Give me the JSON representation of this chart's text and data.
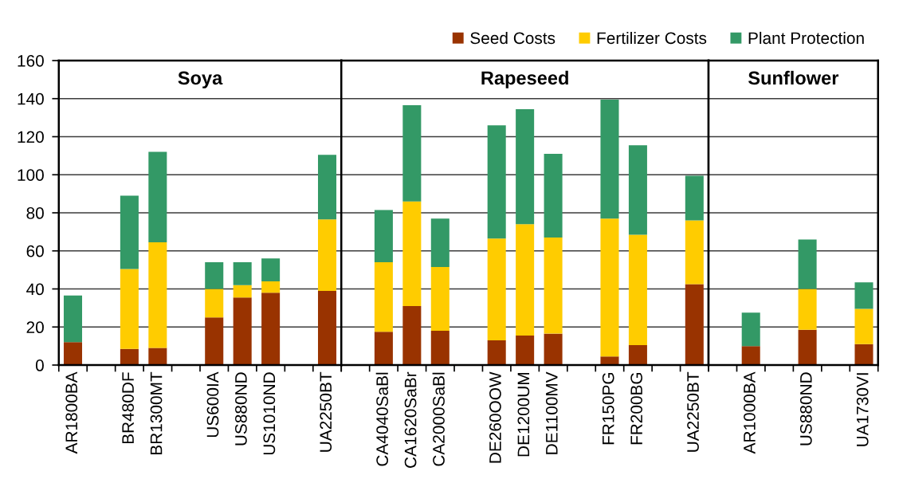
{
  "chart_data": [
    {
      "type": "bar",
      "title": "Soya",
      "stacked": true,
      "categories": [
        "AR1800BA",
        null,
        "BR480DF",
        "BR1300MT",
        null,
        "US600IA",
        "US880ND",
        "US1010ND",
        null,
        "UA2250BT"
      ],
      "series": [
        {
          "name": "Seed Costs",
          "color": "#993300",
          "values": [
            12,
            null,
            8.5,
            9,
            null,
            25,
            35.5,
            38,
            null,
            39
          ]
        },
        {
          "name": "Fertilizer Costs",
          "color": "#ffcc00",
          "values": [
            null,
            null,
            42,
            55.5,
            null,
            15,
            6.5,
            6,
            null,
            37.5
          ]
        },
        {
          "name": "Plant Protection",
          "color": "#339966",
          "values": [
            24.5,
            null,
            38.5,
            47.5,
            null,
            14,
            12,
            12,
            null,
            34
          ]
        }
      ],
      "ylim": [
        0,
        160
      ],
      "yticks": [
        0,
        20,
        40,
        60,
        80,
        100,
        120,
        140,
        160
      ],
      "grid": "y",
      "legend": "top right"
    },
    {
      "type": "bar",
      "title": "Rapeseed",
      "stacked": true,
      "categories": [
        null,
        "CA4040SaBl",
        "CA1620SaBr",
        "CA2000SaBl",
        null,
        "DE260OOW",
        "DE1200UM",
        "DE1100MV",
        null,
        "FR150PG",
        "FR200BG",
        null,
        "UA2250BT"
      ],
      "series": [
        {
          "color": "#993300",
          "values": [
            null,
            17.5,
            31,
            18,
            null,
            13,
            15.5,
            16.5,
            null,
            4.5,
            10.5,
            null,
            42.5
          ]
        },
        {
          "color": "#ffcc00",
          "values": [
            null,
            36.5,
            55,
            33.5,
            null,
            53.5,
            58.5,
            50.5,
            null,
            72.5,
            58,
            null,
            33.5
          ]
        },
        {
          "color": "#339966",
          "values": [
            null,
            27.5,
            50.5,
            25.5,
            null,
            59.5,
            60.5,
            44,
            null,
            62.5,
            47,
            null,
            23.5
          ]
        }
      ],
      "ylim": [
        0,
        160
      ],
      "yticks": [
        0,
        20,
        40,
        60,
        80,
        100,
        120,
        140,
        160
      ],
      "grid": "y",
      "tick_labels": "x"
    },
    {
      "type": "bar",
      "title": "Sunflower",
      "stacked": true,
      "categories": [
        null,
        "AR1000BA",
        null,
        "US880ND",
        null,
        "UA1730VI"
      ],
      "series": [
        {
          "color": "#993300",
          "values": [
            null,
            10,
            null,
            18.5,
            null,
            11
          ]
        },
        {
          "color": "#ffcc00",
          "values": [
            null,
            null,
            null,
            21.5,
            null,
            18.5
          ]
        },
        {
          "color": "#339966",
          "values": [
            null,
            17.5,
            null,
            26,
            null,
            14
          ]
        }
      ],
      "ylim": [
        0,
        160
      ],
      "yticks": [
        0,
        20,
        40,
        60,
        80,
        100,
        120,
        140,
        160
      ],
      "grid": "y",
      "tick_labels": "x"
    }
  ]
}
